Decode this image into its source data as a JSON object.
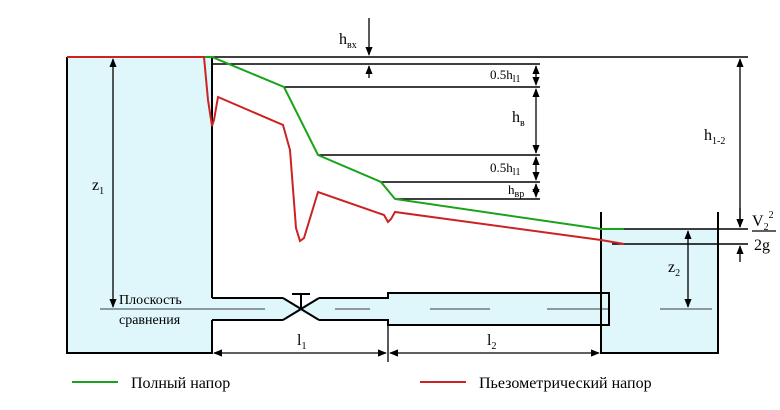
{
  "labels": {
    "h_vx": "h",
    "h_vx_sub": "вх",
    "half_hl_top": "0.5h",
    "half_hl_top_sub": "l1",
    "h_v": "h",
    "h_v_sub": "в",
    "half_hl_bottom": "0.5h",
    "half_hl_bottom_sub": "l1",
    "h_vr": "h",
    "h_vr_sub": "вр",
    "h_12": "h",
    "h_12_sub": "1-2",
    "z1": "z",
    "z1_sub": "1",
    "z2": "z",
    "z2_sub": "2",
    "v_num": "V",
    "v_sub": "2",
    "v_sup": "2",
    "v_den": "2g",
    "plane_line1": "Плоскость",
    "plane_line2": "сравнения",
    "l1": "l",
    "l1_sub": "1",
    "l2": "l",
    "l2_sub": "2"
  },
  "legend": {
    "total": "Полный напор",
    "piezo": "Пьезометрический напор"
  },
  "colors": {
    "total": "#1aa31a",
    "piezo": "#cc2222",
    "water": "#dff6fb",
    "line": "#000000"
  }
}
